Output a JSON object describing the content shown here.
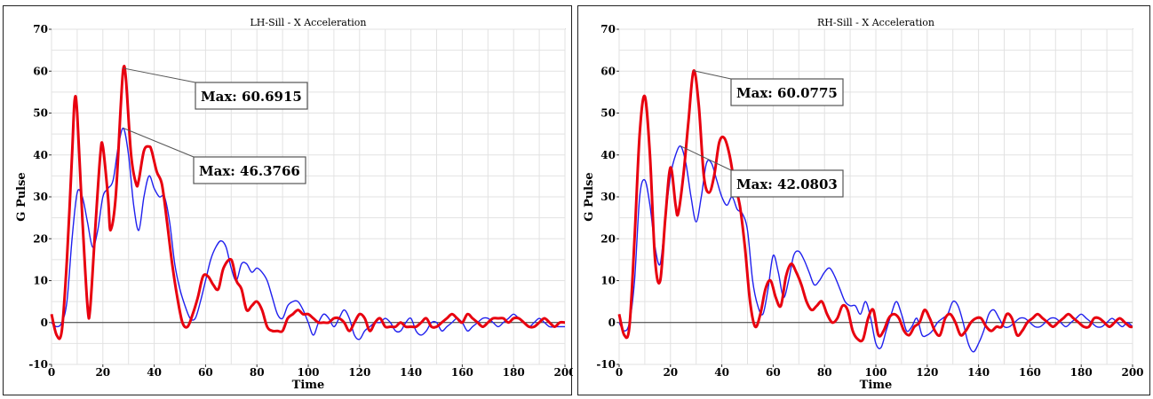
{
  "chart_data": [
    {
      "type": "line",
      "title": "LH-Sill - X Acceleration",
      "xlabel": "Time",
      "ylabel": "G Pulse",
      "xlim": [
        0,
        200
      ],
      "ylim": [
        -10,
        70
      ],
      "xticks": [
        0,
        20,
        40,
        60,
        80,
        100,
        120,
        140,
        160,
        180,
        200
      ],
      "yticks": [
        -10,
        0,
        10,
        20,
        30,
        40,
        50,
        60,
        70
      ],
      "grid": true,
      "annotations": [
        {
          "text": "Max: 60.6915",
          "x": 28,
          "y": 60.7
        },
        {
          "text": "Max: 46.3766",
          "x": 28,
          "y": 46.4
        }
      ],
      "series": [
        {
          "color": "#e8000f",
          "x": [
            0,
            2,
            4,
            6,
            8,
            9,
            10,
            12,
            14,
            15,
            17,
            19,
            20,
            22,
            23,
            25,
            27,
            28,
            29,
            31,
            33,
            34,
            36,
            38,
            39,
            41,
            43,
            45,
            47,
            49,
            51,
            53,
            55,
            57,
            59,
            61,
            63,
            65,
            67,
            70,
            72,
            74,
            76,
            78,
            80,
            82,
            84,
            86,
            88,
            90,
            92,
            94,
            96,
            98,
            100,
            102,
            104,
            106,
            108,
            110,
            112,
            114,
            116,
            118,
            120,
            122,
            124,
            126,
            128,
            130,
            132,
            134,
            136,
            138,
            140,
            142,
            144,
            146,
            148,
            150,
            152,
            154,
            156,
            158,
            160,
            162,
            164,
            166,
            168,
            170,
            172,
            174,
            176,
            178,
            180,
            182,
            184,
            186,
            188,
            190,
            192,
            194,
            196,
            198,
            200
          ],
          "y": [
            2,
            -3,
            -2,
            15,
            40,
            53,
            50,
            25,
            4,
            3,
            22,
            40,
            42,
            30,
            22,
            30,
            52,
            60.69,
            58,
            40,
            33,
            34,
            41,
            42,
            41,
            36,
            33,
            24,
            14,
            6,
            0,
            -1,
            2,
            6,
            11,
            11,
            9,
            8,
            13,
            15,
            10,
            8,
            3,
            4,
            5,
            3,
            -1,
            -2,
            -2,
            -2,
            1,
            2,
            3,
            2,
            2,
            1,
            0,
            0,
            0,
            1,
            1,
            0,
            -2,
            0,
            2,
            1,
            -2,
            0,
            1,
            -1,
            -1,
            -1,
            0,
            -1,
            -1,
            -1,
            0,
            1,
            -1,
            -1,
            0,
            1,
            2,
            1,
            0,
            2,
            1,
            0,
            -1,
            0,
            1,
            1,
            1,
            0,
            1,
            1,
            0,
            -1,
            -1,
            0,
            1,
            0,
            -1,
            0,
            0
          ]
        },
        {
          "color": "#2020ee",
          "x": [
            0,
            2,
            4,
            6,
            8,
            10,
            12,
            14,
            16,
            18,
            20,
            22,
            24,
            26,
            28,
            30,
            32,
            34,
            36,
            38,
            40,
            42,
            44,
            46,
            48,
            50,
            52,
            54,
            56,
            58,
            60,
            62,
            64,
            66,
            68,
            70,
            72,
            74,
            76,
            78,
            80,
            82,
            84,
            86,
            88,
            90,
            92,
            94,
            96,
            98,
            100,
            102,
            104,
            106,
            108,
            110,
            112,
            114,
            116,
            118,
            120,
            122,
            124,
            126,
            128,
            130,
            132,
            134,
            136,
            138,
            140,
            142,
            144,
            146,
            148,
            150,
            152,
            154,
            156,
            158,
            160,
            162,
            164,
            166,
            168,
            170,
            172,
            174,
            176,
            178,
            180,
            182,
            184,
            186,
            188,
            190,
            192,
            194,
            196,
            198,
            200
          ],
          "y": [
            0,
            -1,
            0,
            5,
            20,
            31,
            30,
            24,
            18,
            22,
            30,
            32,
            34,
            42,
            46.38,
            40,
            28,
            22,
            30,
            35,
            32,
            30,
            30,
            24,
            14,
            8,
            4,
            1,
            1,
            5,
            10,
            15,
            18,
            19.5,
            18,
            13,
            10,
            14,
            14,
            12,
            13,
            12,
            10,
            6,
            2,
            1,
            4,
            5,
            5,
            3,
            0,
            -3,
            0,
            2,
            1,
            -1,
            1,
            3,
            1,
            -3,
            -4,
            -2,
            -1,
            0,
            0,
            1,
            0,
            -2,
            -2,
            0,
            1,
            -2,
            -3,
            -2,
            0,
            0,
            -2,
            -1,
            0,
            1,
            0,
            -2,
            -1,
            0,
            1,
            1,
            0,
            -1,
            0,
            1,
            2,
            1,
            0,
            -1,
            0,
            1,
            0,
            -1,
            -1,
            -1,
            -1
          ]
        }
      ]
    },
    {
      "type": "line",
      "title": "RH-Sill - X Acceleration",
      "xlabel": "Time",
      "ylabel": "G Pulse",
      "xlim": [
        0,
        200
      ],
      "ylim": [
        -10,
        70
      ],
      "xticks": [
        0,
        20,
        40,
        60,
        80,
        100,
        120,
        140,
        160,
        180,
        200
      ],
      "yticks": [
        -10,
        0,
        10,
        20,
        30,
        40,
        50,
        60,
        70
      ],
      "grid": true,
      "annotations": [
        {
          "text": "Max: 60.0775",
          "x": 29,
          "y": 60.1
        },
        {
          "text": "Max: 42.0803",
          "x": 24,
          "y": 42.1
        }
      ],
      "series": [
        {
          "color": "#e8000f",
          "x": [
            0,
            2,
            4,
            6,
            8,
            10,
            12,
            14,
            16,
            18,
            20,
            22,
            23,
            25,
            27,
            29,
            31,
            33,
            35,
            37,
            39,
            41,
            43,
            45,
            47,
            49,
            51,
            53,
            55,
            57,
            59,
            61,
            63,
            65,
            67,
            69,
            71,
            73,
            75,
            77,
            79,
            81,
            83,
            85,
            87,
            89,
            91,
            93,
            95,
            97,
            99,
            101,
            103,
            105,
            107,
            109,
            111,
            113,
            115,
            117,
            119,
            121,
            123,
            125,
            127,
            129,
            131,
            133,
            135,
            137,
            139,
            141,
            143,
            145,
            147,
            149,
            151,
            153,
            155,
            157,
            159,
            161,
            163,
            165,
            167,
            169,
            171,
            173,
            175,
            177,
            179,
            181,
            183,
            185,
            187,
            189,
            191,
            193,
            195,
            197,
            199,
            200
          ],
          "y": [
            2,
            -3,
            -1,
            20,
            45,
            54,
            40,
            15,
            10,
            25,
            37,
            28,
            26,
            35,
            48,
            60.08,
            52,
            35,
            31,
            35,
            43,
            44,
            40,
            33,
            28,
            18,
            5,
            -1,
            2,
            8,
            10,
            6,
            4,
            11,
            14,
            12,
            9,
            5,
            3,
            4,
            5,
            2,
            0,
            1,
            4,
            3,
            -2,
            -4,
            -4,
            1,
            3,
            -3,
            -2,
            1,
            2,
            1,
            -2,
            -3,
            -1,
            0,
            3,
            1,
            -2,
            -3,
            1,
            2,
            0,
            -3,
            -2,
            0,
            1,
            1,
            -1,
            -2,
            -1,
            -1,
            2,
            1,
            -3,
            -2,
            0,
            1,
            2,
            1,
            0,
            -1,
            0,
            1,
            2,
            1,
            0,
            -1,
            -1,
            1,
            1,
            0,
            -1,
            0,
            1,
            0,
            -1,
            -1
          ]
        },
        {
          "color": "#2020ee",
          "x": [
            0,
            2,
            4,
            6,
            8,
            10,
            12,
            14,
            16,
            18,
            20,
            22,
            24,
            26,
            28,
            30,
            32,
            34,
            36,
            38,
            40,
            42,
            44,
            46,
            48,
            50,
            52,
            54,
            56,
            58,
            60,
            62,
            64,
            66,
            68,
            70,
            72,
            74,
            76,
            78,
            80,
            82,
            84,
            86,
            88,
            90,
            92,
            94,
            96,
            98,
            100,
            102,
            104,
            106,
            108,
            110,
            112,
            114,
            116,
            118,
            120,
            122,
            124,
            126,
            128,
            130,
            132,
            134,
            136,
            138,
            140,
            142,
            144,
            146,
            148,
            150,
            152,
            154,
            156,
            158,
            160,
            162,
            164,
            166,
            168,
            170,
            172,
            174,
            176,
            178,
            180,
            182,
            184,
            186,
            188,
            190,
            192,
            194,
            196,
            198,
            200
          ],
          "y": [
            0,
            -2,
            0,
            10,
            30,
            34,
            28,
            18,
            14,
            25,
            35,
            40,
            42.08,
            38,
            30,
            24,
            30,
            38,
            38,
            34,
            30,
            28,
            30,
            27,
            26,
            22,
            10,
            4,
            2,
            8,
            16,
            12,
            6,
            10,
            16,
            17,
            15,
            12,
            9,
            10,
            12,
            13,
            11,
            8,
            5,
            4,
            4,
            2,
            5,
            1,
            -5,
            -6,
            -2,
            2,
            5,
            2,
            -2,
            -1,
            1,
            -3,
            -3,
            -2,
            0,
            1,
            2,
            5,
            4,
            0,
            -5,
            -7,
            -5,
            -2,
            2,
            3,
            1,
            -1,
            -1,
            0,
            1,
            1,
            0,
            -1,
            -1,
            0,
            1,
            1,
            0,
            -1,
            0,
            1,
            2,
            1,
            0,
            -1,
            -1,
            0,
            1,
            0,
            -1,
            0,
            -1
          ]
        }
      ]
    }
  ]
}
